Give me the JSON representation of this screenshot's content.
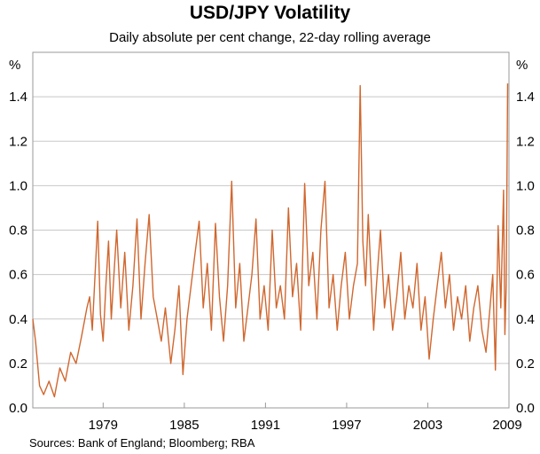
{
  "colors": {
    "line": "#d0672f",
    "grid": "#c8c8c8",
    "frame": "#9a9a9a",
    "background": "#ffffff"
  },
  "chart_data": {
    "type": "line",
    "title": "USD/JPY Volatility",
    "subtitle": "Daily absolute per cent change, 22-day rolling average",
    "source": "Sources: Bank of England; Bloomberg; RBA",
    "ylabel_left": "%",
    "ylabel_right": "%",
    "ylim": [
      0,
      1.6
    ],
    "yticks": [
      "0.0",
      "0.2",
      "0.4",
      "0.6",
      "0.8",
      "1.0",
      "1.2",
      "1.4"
    ],
    "xlim": [
      1973.8,
      2009.0
    ],
    "xticks": [
      "1979",
      "1985",
      "1991",
      "1997",
      "2003",
      "2009"
    ],
    "grid": true,
    "series": [
      {
        "name": "USD/JPY volatility",
        "x": [
          1973.8,
          1974.0,
          1974.3,
          1974.6,
          1975.0,
          1975.4,
          1975.8,
          1976.2,
          1976.6,
          1977.0,
          1977.4,
          1977.8,
          1978.0,
          1978.2,
          1978.4,
          1978.6,
          1978.8,
          1979.0,
          1979.2,
          1979.4,
          1979.6,
          1979.8,
          1980.0,
          1980.3,
          1980.6,
          1980.9,
          1981.2,
          1981.5,
          1981.8,
          1982.1,
          1982.4,
          1982.7,
          1983.0,
          1983.3,
          1983.6,
          1984.0,
          1984.3,
          1984.6,
          1984.9,
          1985.2,
          1985.5,
          1985.8,
          1986.1,
          1986.4,
          1986.7,
          1987.0,
          1987.3,
          1987.6,
          1987.9,
          1988.2,
          1988.5,
          1988.8,
          1989.1,
          1989.4,
          1989.7,
          1990.0,
          1990.3,
          1990.6,
          1990.9,
          1991.2,
          1991.5,
          1991.8,
          1992.1,
          1992.4,
          1992.7,
          1993.0,
          1993.3,
          1993.6,
          1993.9,
          1994.2,
          1994.5,
          1994.8,
          1995.1,
          1995.4,
          1995.7,
          1996.0,
          1996.3,
          1996.6,
          1996.9,
          1997.2,
          1997.5,
          1997.8,
          1998.0,
          1998.2,
          1998.4,
          1998.6,
          1998.8,
          1999.0,
          1999.2,
          1999.5,
          1999.8,
          2000.1,
          2000.4,
          2000.7,
          2001.0,
          2001.3,
          2001.6,
          2001.9,
          2002.2,
          2002.5,
          2002.8,
          2003.1,
          2003.4,
          2003.7,
          2004.0,
          2004.3,
          2004.6,
          2004.9,
          2005.2,
          2005.5,
          2005.8,
          2006.1,
          2006.4,
          2006.7,
          2007.0,
          2007.3,
          2007.6,
          2007.8,
          2008.0,
          2008.2,
          2008.4,
          2008.6,
          2008.7,
          2008.8,
          2008.9
        ],
        "values": [
          0.4,
          0.3,
          0.1,
          0.06,
          0.12,
          0.05,
          0.18,
          0.12,
          0.25,
          0.2,
          0.32,
          0.45,
          0.5,
          0.35,
          0.6,
          0.84,
          0.42,
          0.3,
          0.55,
          0.75,
          0.4,
          0.6,
          0.8,
          0.45,
          0.7,
          0.35,
          0.55,
          0.85,
          0.4,
          0.65,
          0.87,
          0.5,
          0.4,
          0.3,
          0.45,
          0.2,
          0.35,
          0.55,
          0.15,
          0.4,
          0.55,
          0.7,
          0.84,
          0.45,
          0.65,
          0.35,
          0.83,
          0.5,
          0.3,
          0.55,
          1.02,
          0.45,
          0.65,
          0.3,
          0.45,
          0.6,
          0.85,
          0.4,
          0.55,
          0.35,
          0.8,
          0.45,
          0.55,
          0.4,
          0.9,
          0.5,
          0.65,
          0.35,
          1.01,
          0.55,
          0.7,
          0.4,
          0.8,
          1.02,
          0.45,
          0.6,
          0.35,
          0.55,
          0.7,
          0.4,
          0.55,
          0.65,
          1.45,
          0.75,
          0.55,
          0.87,
          0.6,
          0.35,
          0.55,
          0.8,
          0.45,
          0.6,
          0.35,
          0.5,
          0.7,
          0.4,
          0.55,
          0.45,
          0.65,
          0.35,
          0.5,
          0.22,
          0.4,
          0.55,
          0.7,
          0.45,
          0.6,
          0.35,
          0.5,
          0.4,
          0.55,
          0.3,
          0.45,
          0.55,
          0.35,
          0.25,
          0.45,
          0.6,
          0.17,
          0.82,
          0.45,
          0.98,
          0.33,
          0.55,
          1.46
        ]
      }
    ]
  }
}
